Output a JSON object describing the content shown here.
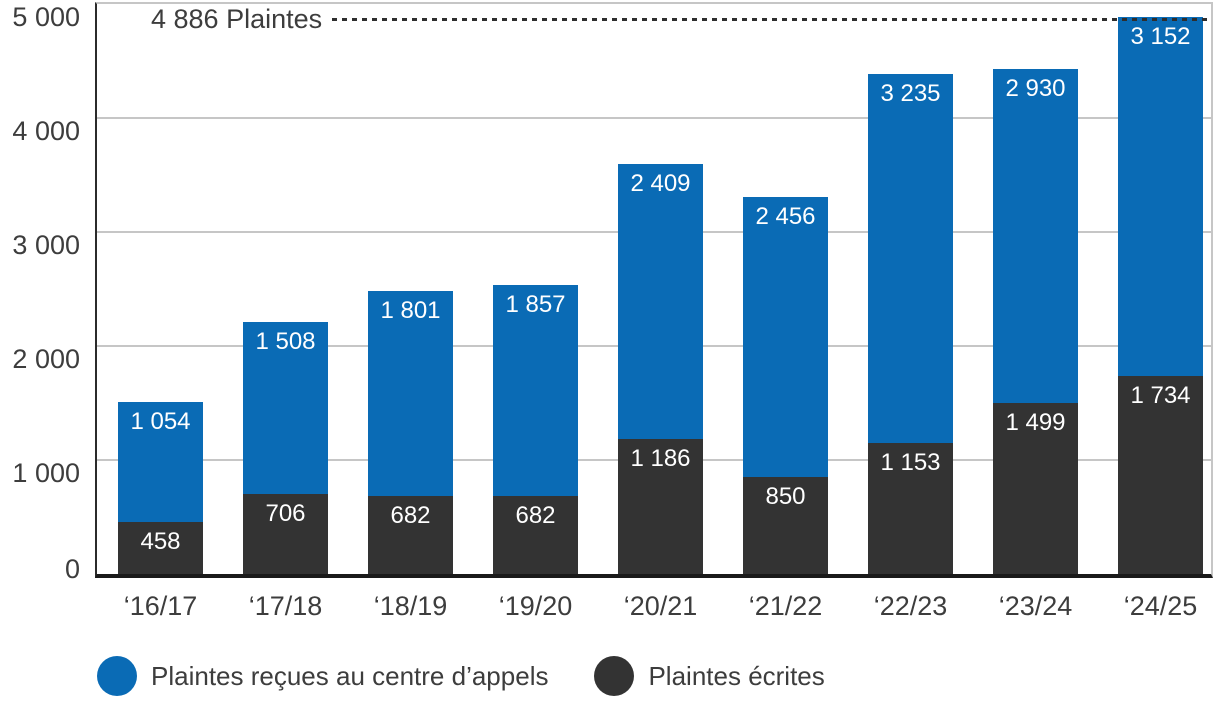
{
  "chart_data": {
    "type": "bar",
    "stacked": true,
    "title": "",
    "xlabel": "",
    "ylabel": "",
    "categories": [
      "‘16/17",
      "‘17/18",
      "‘18/19",
      "‘19/20",
      "‘20/21",
      "‘21/22",
      "‘22/23",
      "‘23/24",
      "‘24/25"
    ],
    "series": [
      {
        "name": "Plaintes reçues au centre d’appels",
        "color": "#0a6bb5",
        "stack_position": "top",
        "values": [
          1054,
          1508,
          1801,
          1857,
          2409,
          2456,
          3235,
          2930,
          3152
        ],
        "labels": [
          "1 054",
          "1 508",
          "1 801",
          "1 857",
          "2 409",
          "2 456",
          "3 235",
          "2 930",
          "3 152"
        ]
      },
      {
        "name": "Plaintes écrites",
        "color": "#333333",
        "stack_position": "bottom",
        "values": [
          458,
          706,
          682,
          682,
          1186,
          850,
          1153,
          1499,
          1734
        ],
        "labels": [
          "458",
          "706",
          "682",
          "682",
          "1 186",
          "850",
          "1 153",
          "1 499",
          "1 734"
        ]
      }
    ],
    "totals": [
      1512,
      2214,
      2483,
      2539,
      3595,
      3306,
      4388,
      4429,
      4886
    ],
    "annotation": {
      "label": "4 886 Plaintes",
      "value": 4886,
      "line_style": "dotted"
    },
    "ylim": [
      0,
      5000
    ],
    "yticks": [
      {
        "value": 0,
        "label": "0"
      },
      {
        "value": 1000,
        "label": "1 000"
      },
      {
        "value": 2000,
        "label": "2 000"
      },
      {
        "value": 3000,
        "label": "3 000"
      },
      {
        "value": 4000,
        "label": "4 000"
      },
      {
        "value": 5000,
        "label": "5 000"
      }
    ],
    "grid": true,
    "legend_position": "bottom",
    "colors": {
      "grid": "#c6c6c6",
      "axis_bottom": "#1a1a1a",
      "axis_left": "#2b2b2b",
      "tick_text": "#3d3d3d",
      "bar_label_text": "#ffffff",
      "background": "#ffffff"
    }
  }
}
